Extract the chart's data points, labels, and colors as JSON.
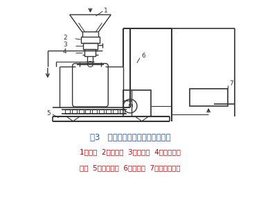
{
  "title": "图3   毛重下称重式包装机基本组成",
  "title_color": "#2255AA",
  "caption_line1": "1．料仓  2．进料阀  3．采样口  4．充气和除",
  "caption_line2": "尘口  5．称量平台  6．升降架  7．称重控制器",
  "caption_color": "#CC0000",
  "bg_color": "#ffffff",
  "figsize": [
    3.77,
    3.0
  ],
  "dpi": 100
}
